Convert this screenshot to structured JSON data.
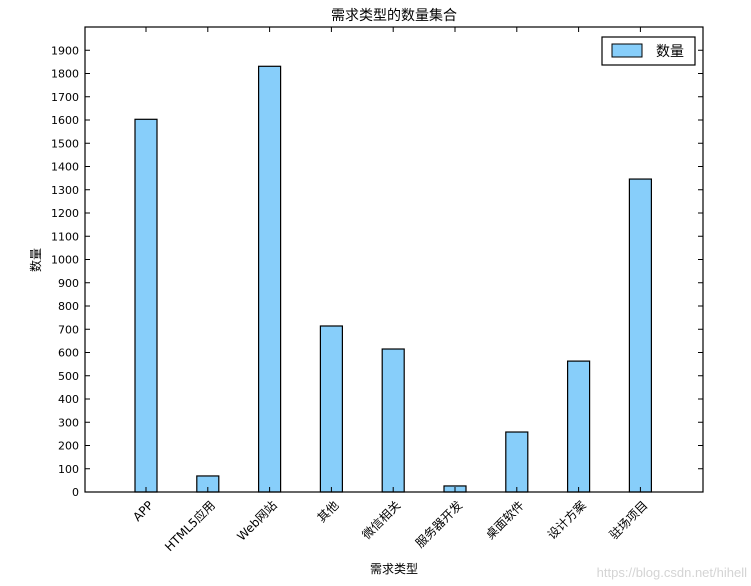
{
  "chart_data": {
    "type": "bar",
    "title": "需求类型的数量集合",
    "xlabel": "需求类型",
    "ylabel": "数量",
    "categories": [
      "APP",
      "HTML5应用",
      "Web网站",
      "其他",
      "微信相关",
      "服务器开发",
      "桌面软件",
      "设计方案",
      "驻场项目"
    ],
    "series": [
      {
        "name": "数量",
        "values": [
          1603,
          69,
          1831,
          714,
          615,
          26,
          258,
          563,
          1346
        ]
      }
    ],
    "ylim": [
      0,
      2000
    ],
    "yticks": [
      0,
      100,
      200,
      300,
      400,
      500,
      600,
      700,
      800,
      900,
      1000,
      1100,
      1200,
      1300,
      1400,
      1500,
      1600,
      1700,
      1800,
      1900
    ],
    "grid": false,
    "legend_position": "upper right",
    "bar_color": "#87cefa",
    "edge_color": "#000000",
    "xtick_rotation": 45
  },
  "watermark": "https://blog.csdn.net/hihell"
}
